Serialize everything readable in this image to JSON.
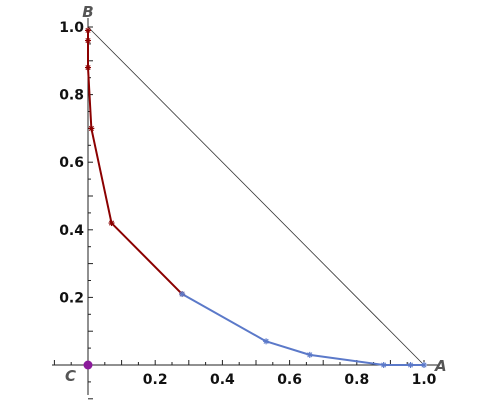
{
  "chart_data": {
    "type": "line",
    "title": "",
    "xlabel": "",
    "ylabel": "",
    "xlim": [
      -0.1,
      1.05
    ],
    "ylim": [
      -0.1,
      1.05
    ],
    "x_ticks": [
      {
        "value": 0.2,
        "label": "0.2"
      },
      {
        "value": 0.4,
        "label": "0.4"
      },
      {
        "value": 0.6,
        "label": "0.6"
      },
      {
        "value": 0.8,
        "label": "0.8"
      },
      {
        "value": 1.0,
        "label": "1.0"
      }
    ],
    "y_ticks": [
      {
        "value": 0.2,
        "label": "0.2"
      },
      {
        "value": 0.4,
        "label": "0.4"
      },
      {
        "value": 0.6,
        "label": "0.6"
      },
      {
        "value": 0.8,
        "label": "0.8"
      },
      {
        "value": 1.0,
        "label": "1.0"
      }
    ],
    "triangle": {
      "vertices": [
        [
          0,
          1
        ],
        [
          1,
          0
        ]
      ],
      "color": "#333333"
    },
    "vertex_labels": [
      {
        "label": "A",
        "x": 1.0,
        "y": 0.0,
        "anchor": "right"
      },
      {
        "label": "B",
        "x": 0.0,
        "y": 1.0,
        "anchor": "top"
      },
      {
        "label": "C",
        "x": 0.0,
        "y": 0.0,
        "anchor": "left"
      }
    ],
    "series": [
      {
        "color": "#8b0000",
        "points": [
          [
            0.0,
            0.99
          ],
          [
            0.0,
            0.96
          ],
          [
            0.0,
            0.88
          ],
          [
            0.01,
            0.7
          ],
          [
            0.07,
            0.42
          ],
          [
            0.28,
            0.21
          ]
        ]
      },
      {
        "color": "#5b79c9",
        "points": [
          [
            0.28,
            0.21
          ],
          [
            0.53,
            0.07
          ],
          [
            0.66,
            0.03
          ],
          [
            0.88,
            0.0
          ],
          [
            0.96,
            0.0
          ],
          [
            1.0,
            0.0
          ]
        ]
      }
    ],
    "highlight_point": {
      "x": 0.0,
      "y": 0.0,
      "color": "#8b1a9b"
    },
    "grid": false
  }
}
